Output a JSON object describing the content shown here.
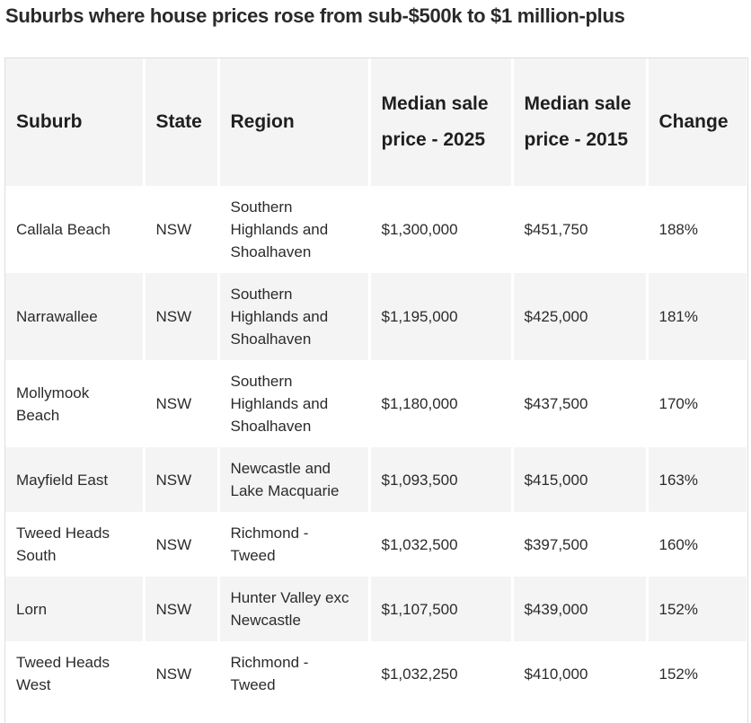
{
  "title": "Suburbs where house prices rose from sub-$500k to $1 million-plus",
  "table": {
    "headers": {
      "suburb": "Suburb",
      "state": "State",
      "region": "Region",
      "price_2025": "Median sale price - 2025",
      "price_2015": "Median sale price - 2015",
      "change": "Change"
    },
    "rows": [
      {
        "suburb": "Callala Beach",
        "state": "NSW",
        "region": "Southern Highlands and Shoalhaven",
        "price_2025": "$1,300,000",
        "price_2015": "$451,750",
        "change": "188%"
      },
      {
        "suburb": "Narrawallee",
        "state": "NSW",
        "region": "Southern Highlands and Shoalhaven",
        "price_2025": "$1,195,000",
        "price_2015": "$425,000",
        "change": "181%"
      },
      {
        "suburb": "Mollymook Beach",
        "state": "NSW",
        "region": "Southern Highlands and Shoalhaven",
        "price_2025": "$1,180,000",
        "price_2015": "$437,500",
        "change": "170%"
      },
      {
        "suburb": "Mayfield East",
        "state": "NSW",
        "region": "Newcastle and Lake Macquarie",
        "price_2025": "$1,093,500",
        "price_2015": "$415,000",
        "change": "163%"
      },
      {
        "suburb": "Tweed Heads South",
        "state": "NSW",
        "region": "Richmond - Tweed",
        "price_2025": "$1,032,500",
        "price_2015": "$397,500",
        "change": "160%"
      },
      {
        "suburb": "Lorn",
        "state": "NSW",
        "region": "Hunter Valley exc Newcastle",
        "price_2025": "$1,107,500",
        "price_2015": "$439,000",
        "change": "152%"
      },
      {
        "suburb": "Tweed Heads West",
        "state": "NSW",
        "region": "Richmond - Tweed",
        "price_2025": "$1,032,250",
        "price_2015": "$410,000",
        "change": "152%"
      }
    ]
  }
}
